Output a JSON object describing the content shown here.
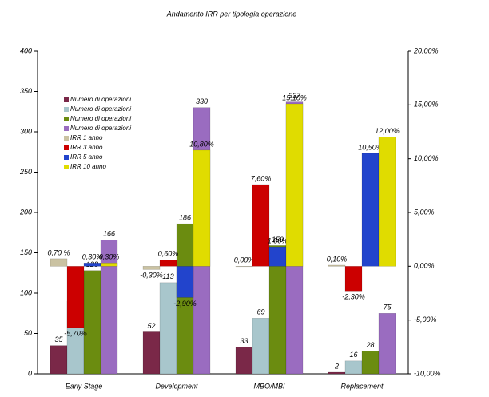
{
  "chart_data": {
    "type": "bar",
    "title": "Andamento IRR per tipologia operazione",
    "categories": [
      "Early Stage",
      "Development",
      "MBO/MBI",
      "Replacement"
    ],
    "ylim": [
      0,
      400
    ],
    "yticks": [
      0,
      50,
      100,
      150,
      200,
      250,
      300,
      350,
      400
    ],
    "y2lim": [
      -10,
      20
    ],
    "y2ticks": [
      {
        "value": -10,
        "label": "-10,00%"
      },
      {
        "value": -5,
        "label": "-5,00%"
      },
      {
        "value": 0,
        "label": "0,00%"
      },
      {
        "value": 5,
        "label": "5,00%"
      },
      {
        "value": 10,
        "label": "10,00%"
      },
      {
        "value": 15,
        "label": "15,00%"
      },
      {
        "value": 20,
        "label": "20,00%"
      }
    ],
    "series": [
      {
        "name": "Numero di operazioni",
        "color": "#7a2848",
        "values": [
          35,
          52,
          33,
          2
        ]
      },
      {
        "name": "Numero di operazioni",
        "color": "#a8c6cc",
        "values": [
          90,
          113,
          69,
          16
        ]
      },
      {
        "name": "Numero di operazioni",
        "color": "#6b8c10",
        "values": [
          128,
          186,
          159,
          28
        ]
      },
      {
        "name": "Numero di operazioni",
        "color": "#9a6cc0",
        "values": [
          166,
          330,
          337,
          75
        ]
      },
      {
        "name": "IRR 1 anno",
        "color": "#cac2a2",
        "axis": "y2",
        "values": [
          0.7,
          -0.3,
          0,
          0.1
        ],
        "value_labels": [
          "0,70 %",
          "-0,30%",
          "0,00%",
          "0,10%"
        ]
      },
      {
        "name": "IRR 3 anno",
        "color": "#cc0000",
        "axis": "y2",
        "values": [
          -5.7,
          0.6,
          7.6,
          -2.3
        ],
        "value_labels": [
          "-5,70%",
          "0,60%",
          "7,60%",
          "-2,30%"
        ]
      },
      {
        "name": "IRR 5 anno",
        "color": "#2244cc",
        "axis": "y2",
        "values": [
          0.3,
          -2.9,
          1.8,
          10.5
        ],
        "value_labels": [
          "0,30%",
          "-2,90%",
          "1,80%",
          "10,50%"
        ]
      },
      {
        "name": "IRR 10 anno",
        "color": "#e0dc00",
        "axis": "y2",
        "values": [
          0.3,
          10.8,
          15.1,
          12
        ],
        "value_labels": [
          "0,30%",
          "10,80%",
          "15,10%",
          "12,00%"
        ]
      }
    ]
  }
}
